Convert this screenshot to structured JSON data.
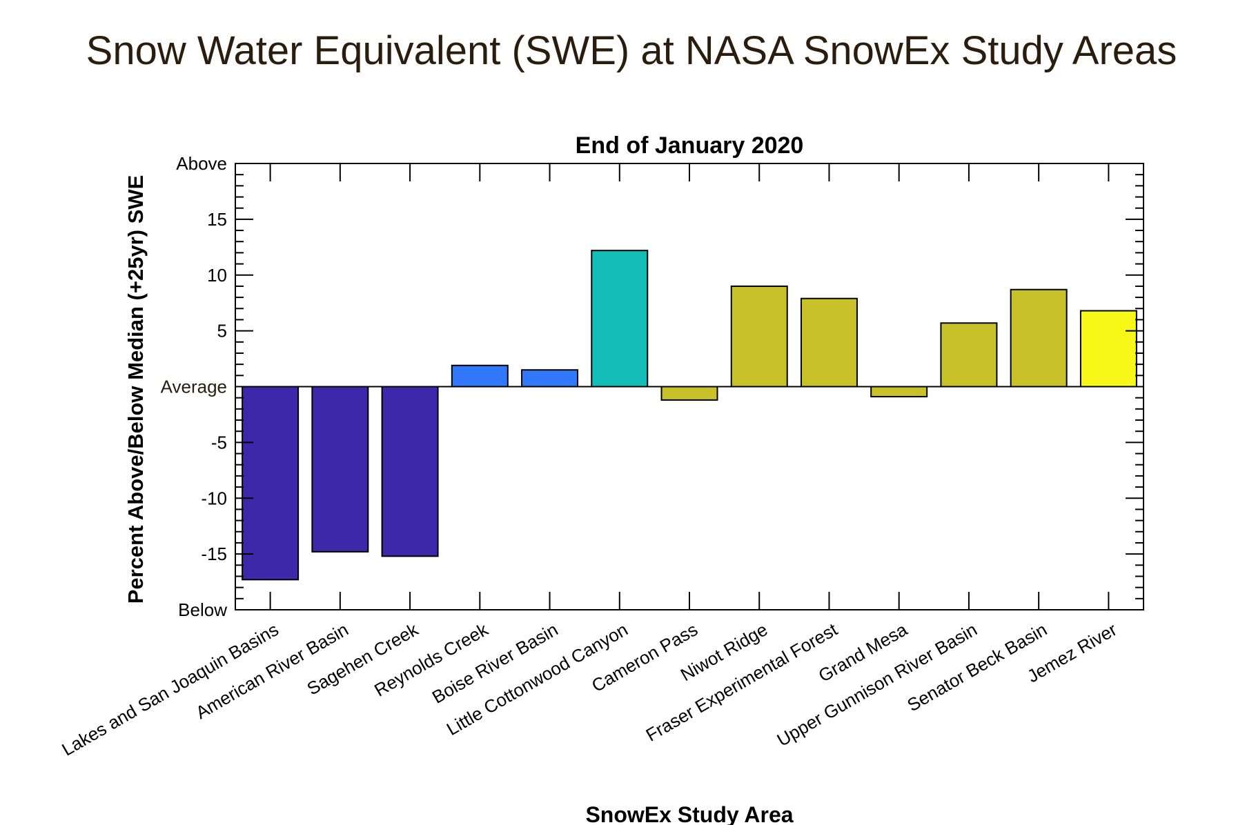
{
  "title": "Snow Water Equivalent (SWE) at NASA SnowEx Study Areas",
  "chart_data": {
    "type": "bar",
    "title": "End of January 2020",
    "xlabel": "SnowEx Study Area",
    "ylabel": "Percent Above/Below Median (+25yr) SWE",
    "ylim": [
      -20,
      20
    ],
    "yticks": [
      {
        "value": 20,
        "label": "Above"
      },
      {
        "value": 15,
        "label": "15"
      },
      {
        "value": 10,
        "label": "10"
      },
      {
        "value": 5,
        "label": "5"
      },
      {
        "value": 0,
        "label": "Average"
      },
      {
        "value": -5,
        "label": "-5"
      },
      {
        "value": -10,
        "label": "-10"
      },
      {
        "value": -15,
        "label": "-15"
      },
      {
        "value": -20,
        "label": "Below"
      }
    ],
    "categories": [
      "Lakes and San Joaquin Basins",
      "American River Basin",
      "Sagehen Creek",
      "Reynolds Creek",
      "Boise River Basin",
      "Little Cottonwood Canyon",
      "Cameron Pass",
      "Niwot Ridge",
      "Fraser Experimental Forest",
      "Grand Mesa",
      "Upper Gunnison River Basin",
      "Senator Beck Basin",
      "Jemez River"
    ],
    "values": [
      -17.3,
      -14.8,
      -15.2,
      1.9,
      1.5,
      12.2,
      -1.2,
      9.0,
      7.9,
      -0.9,
      5.7,
      8.7,
      6.8
    ],
    "colors": [
      "#3c28a8",
      "#3c28a8",
      "#3c28a8",
      "#3178fa",
      "#3178fa",
      "#14bcb8",
      "#c8c12a",
      "#c8c12a",
      "#c8c12a",
      "#c8c12a",
      "#c8c12a",
      "#c8c12a",
      "#f8f818"
    ]
  }
}
